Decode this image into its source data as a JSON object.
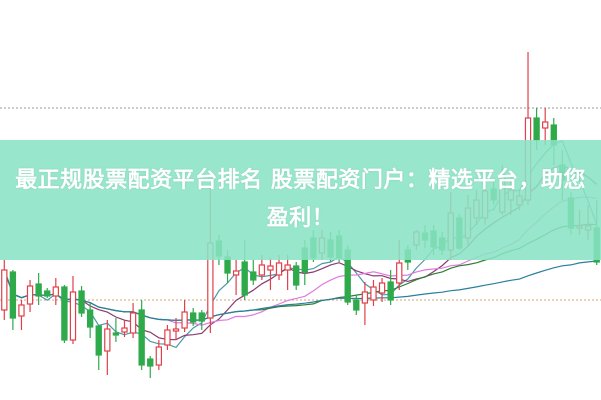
{
  "banner": {
    "title": "最正规股票配资平台排名 股票配资门户：精选平台，助您盈利！"
  },
  "chart_data": {
    "type": "candlestick",
    "ylim": [
      0,
      40
    ],
    "grid": false,
    "reference_lines": [
      29.2,
      10.0
    ],
    "colors": {
      "up": "#e0404a",
      "down": "#2eaa4a",
      "banner": "#8ae2c4"
    },
    "moving_average_periods": [
      5,
      10,
      20,
      30,
      60
    ],
    "moving_average_colors": [
      "#4a9aa8",
      "#8b3a6e",
      "#e07be0",
      "#2e7d32",
      "#2a7f9e"
    ],
    "candles": [
      [
        9.0,
        14.0,
        8.0,
        13.0
      ],
      [
        12.8,
        13.0,
        7.0,
        8.2
      ],
      [
        8.4,
        10.0,
        7.0,
        9.5
      ],
      [
        9.6,
        12.0,
        8.8,
        11.4
      ],
      [
        11.6,
        12.7,
        9.5,
        10.4
      ],
      [
        10.9,
        11.2,
        10.2,
        10.4
      ],
      [
        10.4,
        12.2,
        9.5,
        11.3
      ],
      [
        11.3,
        11.5,
        5.7,
        6.0
      ],
      [
        6.0,
        12.4,
        5.6,
        10.8
      ],
      [
        10.9,
        11.4,
        8.3,
        8.7
      ],
      [
        9.0,
        9.7,
        6.2,
        7.3
      ],
      [
        7.4,
        7.5,
        3.0,
        4.5
      ],
      [
        4.9,
        8.0,
        2.5,
        7.1
      ],
      [
        6.7,
        8.2,
        5.8,
        6.5
      ],
      [
        6.8,
        8.0,
        6.3,
        7.2
      ],
      [
        6.7,
        9.7,
        6.2,
        8.7
      ],
      [
        9.0,
        10.0,
        3.0,
        3.5
      ],
      [
        4.1,
        4.4,
        2.2,
        3.4
      ],
      [
        3.5,
        6.0,
        3.0,
        5.3
      ],
      [
        5.5,
        7.5,
        5.0,
        7.0
      ],
      [
        6.9,
        8.2,
        6.0,
        7.1
      ],
      [
        7.2,
        10.0,
        6.8,
        8.8
      ],
      [
        8.7,
        9.2,
        7.4,
        7.8
      ],
      [
        8.7,
        9.0,
        7.0,
        7.9
      ],
      [
        8.2,
        21.5,
        6.7,
        15.7
      ],
      [
        15.9,
        16.5,
        13.5,
        14.4
      ],
      [
        14.3,
        15.0,
        11.7,
        12.7
      ],
      [
        12.5,
        14.0,
        10.5,
        12.9
      ],
      [
        13.8,
        16.0,
        10.0,
        10.5
      ],
      [
        12.8,
        14.0,
        11.5,
        12.0
      ],
      [
        12.5,
        14.5,
        12.0,
        13.5
      ],
      [
        13.0,
        14.2,
        11.0,
        13.4
      ],
      [
        12.5,
        14.5,
        12.0,
        13.7
      ],
      [
        13.0,
        14.5,
        11.0,
        13.5
      ],
      [
        13.4,
        13.8,
        11.0,
        11.5
      ],
      [
        15.2,
        16.0,
        11.5,
        12.8
      ],
      [
        16.2,
        17.0,
        13.8,
        14.2
      ],
      [
        14.7,
        17.0,
        14.0,
        16.2
      ],
      [
        16.0,
        16.8,
        13.8,
        14.3
      ],
      [
        16.4,
        17.0,
        13.8,
        14.2
      ],
      [
        15.0,
        15.5,
        9.5,
        9.8
      ],
      [
        10.0,
        10.5,
        8.5,
        9.0
      ],
      [
        9.7,
        11.8,
        7.5,
        10.8
      ],
      [
        10.0,
        12.0,
        9.4,
        11.3
      ],
      [
        10.7,
        12.2,
        9.8,
        11.7
      ],
      [
        11.8,
        13.0,
        9.5,
        10.0
      ],
      [
        11.7,
        16.0,
        11.0,
        13.7
      ],
      [
        15.0,
        15.5,
        13.0,
        13.8
      ],
      [
        15.5,
        17.0,
        15.0,
        16.8
      ],
      [
        16.7,
        17.5,
        15.2,
        16.0
      ],
      [
        16.9,
        17.5,
        14.5,
        15.3
      ],
      [
        16.2,
        16.8,
        14.5,
        15.0
      ],
      [
        15.0,
        20.8,
        14.0,
        18.7
      ],
      [
        18.2,
        18.6,
        15.0,
        15.2
      ],
      [
        16.2,
        20.5,
        15.5,
        19.2
      ],
      [
        18.2,
        21.0,
        17.5,
        20.0
      ],
      [
        18.2,
        21.5,
        17.5,
        20.9
      ],
      [
        21.1,
        22.0,
        19.5,
        20.0
      ],
      [
        18.8,
        23.5,
        18.5,
        22.5
      ],
      [
        20.0,
        22.0,
        18.5,
        21.0
      ],
      [
        19.5,
        21.0,
        19.0,
        20.4
      ],
      [
        20.0,
        34.8,
        19.5,
        28.2
      ],
      [
        28.2,
        29.2,
        25.0,
        26.0
      ],
      [
        27.2,
        29.2,
        25.5,
        27.8
      ],
      [
        27.5,
        28.2,
        23.5,
        25.5
      ],
      [
        23.5,
        25.0,
        20.0,
        22.0
      ],
      [
        20.2,
        20.8,
        16.5,
        17.2
      ],
      [
        17.2,
        19.0,
        16.5,
        17.4
      ],
      [
        17.0,
        19.5,
        16.0,
        17.4
      ],
      [
        17.2,
        20.0,
        13.5,
        13.8
      ]
    ]
  }
}
